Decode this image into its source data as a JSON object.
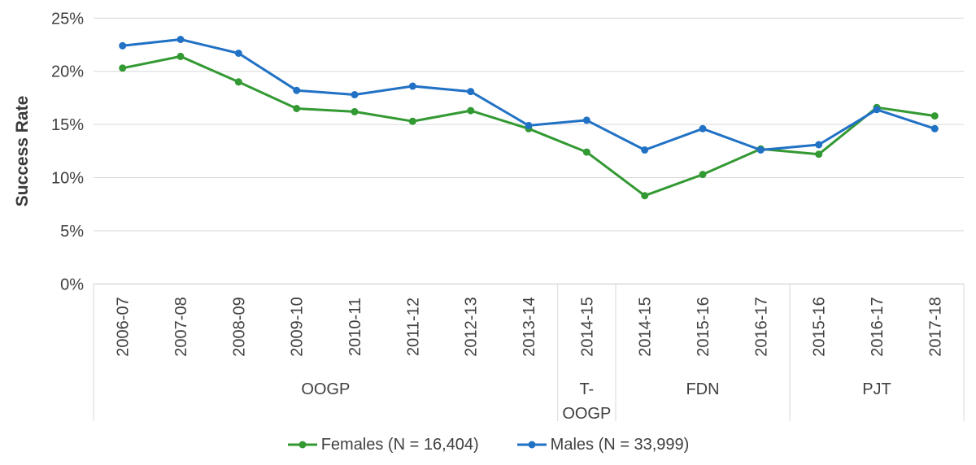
{
  "chart_data": {
    "type": "line",
    "title": "",
    "ylabel": "Success Rate",
    "xlabel": "",
    "ylim": [
      0,
      25
    ],
    "y_ticks": [
      "0%",
      "5%",
      "10%",
      "15%",
      "20%",
      "25%"
    ],
    "grid": true,
    "legend_position": "bottom",
    "categories": [
      "2006-07",
      "2007-08",
      "2008-09",
      "2009-10",
      "2010-11",
      "2011-12",
      "2012-13",
      "2013-14",
      "2014-15",
      "2014-15",
      "2015-16",
      "2016-17",
      "2015-16",
      "2016-17",
      "2017-18"
    ],
    "groups": [
      {
        "label": "OOGP",
        "lines": [
          "OOGP"
        ],
        "span": 8
      },
      {
        "label": "T-OOGP",
        "lines": [
          "T-",
          "OOGP"
        ],
        "span": 1
      },
      {
        "label": "FDN",
        "lines": [
          "FDN"
        ],
        "span": 3
      },
      {
        "label": "PJT",
        "lines": [
          "PJT"
        ],
        "span": 3
      }
    ],
    "series": [
      {
        "name": "Females (N = 16,404)",
        "color": "#339933",
        "values": [
          20.3,
          21.4,
          19.0,
          16.5,
          16.2,
          15.3,
          16.3,
          14.6,
          12.4,
          8.3,
          10.3,
          12.7,
          12.2,
          16.6,
          15.8
        ]
      },
      {
        "name": "Males (N = 33,999)",
        "color": "#2171C5",
        "values": [
          22.4,
          23.0,
          21.7,
          18.2,
          17.8,
          18.6,
          18.1,
          14.9,
          15.4,
          12.6,
          14.6,
          12.6,
          13.1,
          16.4,
          14.6
        ]
      }
    ]
  },
  "style": {
    "grid_color": "#D9D9D9",
    "axis_color": "#C9C9C9",
    "text_color": "#404040"
  }
}
